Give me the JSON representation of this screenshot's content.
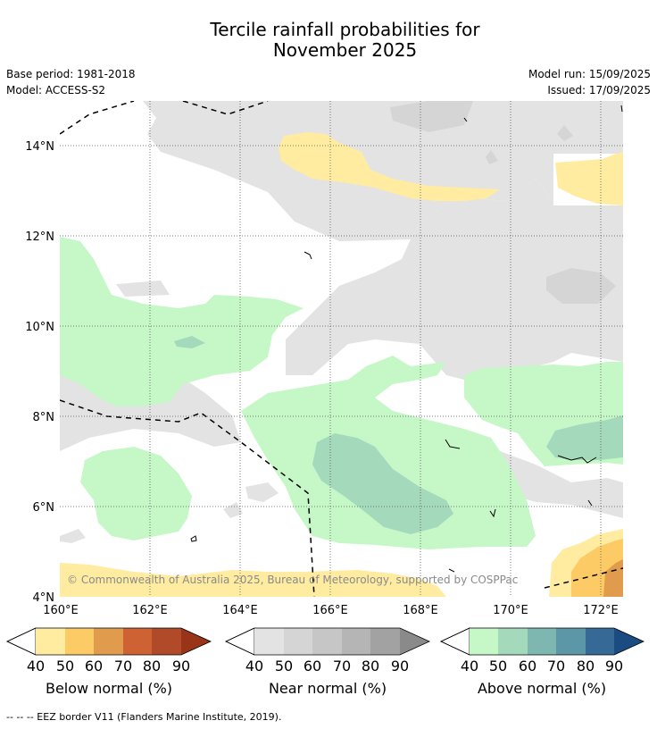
{
  "title_line1": "Tercile rainfall probabilities for",
  "title_line2": "November 2025",
  "base_period": "Base period: 1981-2018",
  "model": "Model: ACCESS-S2",
  "model_run": "Model run: 15/09/2025",
  "issued": "Issued: 17/09/2025",
  "map": {
    "lon_range": [
      160,
      172.5
    ],
    "lat_range": [
      4,
      15
    ],
    "lon_ticks": [
      "160°E",
      "162°E",
      "164°E",
      "166°E",
      "168°E",
      "170°E",
      "172°E"
    ],
    "lat_ticks": [
      "4°N",
      "6°N",
      "8°N",
      "10°N",
      "12°N",
      "14°N"
    ],
    "grid": "dotted",
    "copyright": "© Commonwealth of Australia 2025, Bureau of Meteorology, supported by COSPPac"
  },
  "legends": [
    {
      "name": "Below normal (%)",
      "ticks": [
        "40",
        "50",
        "60",
        "70",
        "80",
        "90"
      ],
      "colors": [
        "#ffeca0",
        "#fdcb66",
        "#e09c4c",
        "#cf6233",
        "#b04a28",
        "#9a3418"
      ]
    },
    {
      "name": "Near normal (%)",
      "ticks": [
        "40",
        "50",
        "60",
        "70",
        "80",
        "90"
      ],
      "colors": [
        "#e3e3e3",
        "#d5d5d5",
        "#c6c6c6",
        "#b5b5b5",
        "#a2a2a2",
        "#8a8a8a"
      ]
    },
    {
      "name": "Above normal (%)",
      "ticks": [
        "40",
        "50",
        "60",
        "70",
        "80",
        "90"
      ],
      "colors": [
        "#c6f8c7",
        "#a4d9bb",
        "#7eb7b0",
        "#5b97a6",
        "#376996",
        "#1a4c82"
      ]
    }
  ],
  "footnote": "--  --  -- EEZ border V11 (Flanders Marine Institute, 2019)."
}
